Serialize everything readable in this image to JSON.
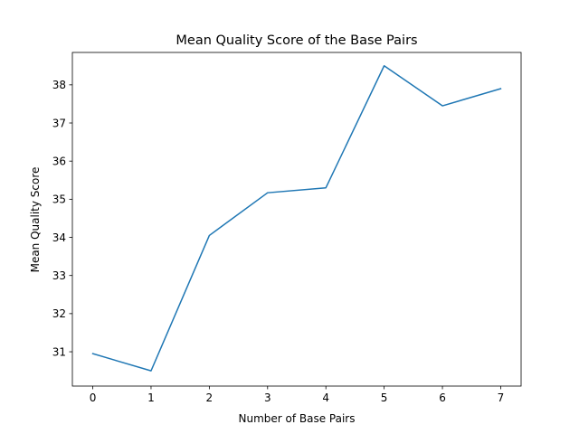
{
  "chart_data": {
    "type": "line",
    "title": "Mean Quality Score of the Base Pairs",
    "xlabel": "Number of Base Pairs",
    "ylabel": "Mean Quality Score",
    "x": [
      0,
      1,
      2,
      3,
      4,
      5,
      6,
      7
    ],
    "xticks": [
      "0",
      "1",
      "2",
      "3",
      "4",
      "5",
      "6",
      "7"
    ],
    "yticks": [
      "31",
      "32",
      "33",
      "34",
      "35",
      "36",
      "37",
      "38"
    ],
    "xlim": [
      -0.35,
      7.35
    ],
    "ylim": [
      30.1,
      38.85
    ],
    "series": [
      {
        "values": [
          30.95,
          30.5,
          34.05,
          35.17,
          35.3,
          38.5,
          37.45,
          37.9
        ],
        "color": "#1f77b4"
      }
    ],
    "grid": false,
    "legend": "none"
  }
}
